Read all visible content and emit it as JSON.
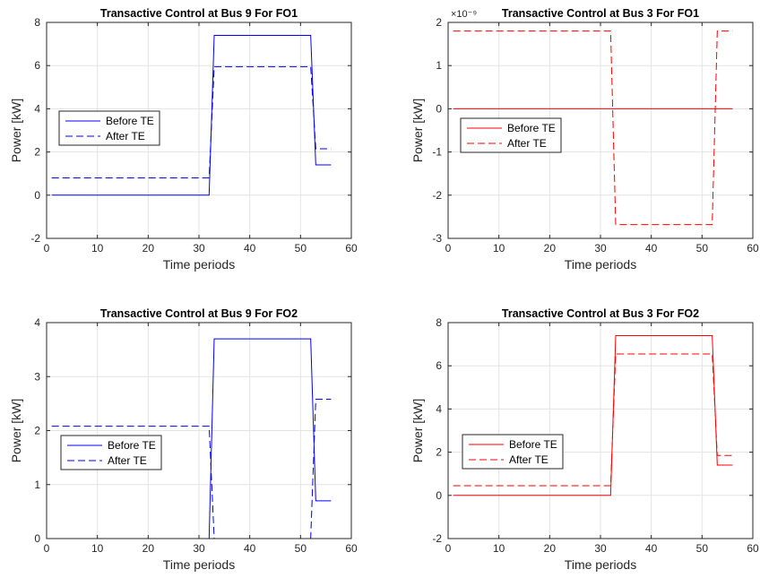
{
  "chart_data": [
    {
      "type": "line",
      "title": "Transactive Control at Bus 9 For FO1",
      "xlabel": "Time periods",
      "ylabel": "Power [kW]",
      "xlim": [
        0,
        60
      ],
      "ylim": [
        -2,
        8
      ],
      "xticks": [
        0,
        10,
        20,
        30,
        40,
        50,
        60
      ],
      "yticks": [
        -2,
        0,
        2,
        4,
        6,
        8
      ],
      "exponent_label": "",
      "grid": true,
      "legend_position": "middle-left",
      "series": [
        {
          "name": "Before TE",
          "color": "#0000ff",
          "style": "solid",
          "points": [
            [
              1,
              0
            ],
            [
              32,
              0
            ],
            [
              33,
              7.4
            ],
            [
              52,
              7.4
            ],
            [
              53,
              1.4
            ],
            [
              56,
              1.4
            ]
          ]
        },
        {
          "name": "After TE",
          "color": "#0000ff",
          "style": "dashed",
          "points": [
            [
              1,
              0.8
            ],
            [
              32,
              0.8
            ],
            [
              33,
              5.95
            ],
            [
              52,
              5.95
            ],
            [
              53,
              2.15
            ],
            [
              56,
              2.15
            ]
          ]
        }
      ]
    },
    {
      "type": "line",
      "title": "Transactive Control at Bus 3 For FO1",
      "xlabel": "Time periods",
      "ylabel": "Power [kW]",
      "xlim": [
        0,
        60
      ],
      "ylim": [
        -3,
        2
      ],
      "xticks": [
        0,
        10,
        20,
        30,
        40,
        50,
        60
      ],
      "yticks": [
        -3,
        -2,
        -1,
        0,
        1,
        2
      ],
      "exponent_label": "×10⁻⁹",
      "y_multiplier": "1e-9",
      "grid": true,
      "legend_position": "middle-left",
      "series": [
        {
          "name": "Before TE",
          "color": "#ff0000",
          "style": "solid",
          "points": [
            [
              1,
              0
            ],
            [
              56,
              0
            ]
          ]
        },
        {
          "name": "After TE",
          "color": "#ff0000",
          "style": "dashed",
          "points": [
            [
              1,
              1.8
            ],
            [
              32,
              1.8
            ],
            [
              33,
              -2.68
            ],
            [
              52,
              -2.68
            ],
            [
              53,
              1.8
            ],
            [
              56,
              1.8
            ]
          ]
        }
      ]
    },
    {
      "type": "line",
      "title": "Transactive Control at Bus 9 For FO2",
      "xlabel": "Time periods",
      "ylabel": "Power [kW]",
      "xlim": [
        0,
        60
      ],
      "ylim": [
        0,
        4
      ],
      "xticks": [
        0,
        10,
        20,
        30,
        40,
        50,
        60
      ],
      "yticks": [
        0,
        1,
        2,
        3,
        4
      ],
      "exponent_label": "",
      "grid": true,
      "legend_position": "middle-left",
      "series": [
        {
          "name": "Before TE",
          "color": "#0000ff",
          "style": "solid",
          "points": [
            [
              1,
              0
            ],
            [
              32,
              0
            ],
            [
              33,
              3.7
            ],
            [
              52,
              3.7
            ],
            [
              53,
              0.7
            ],
            [
              56,
              0.7
            ]
          ]
        },
        {
          "name": "After TE",
          "color": "#0000ff",
          "style": "dashed",
          "points": [
            [
              1,
              2.08
            ],
            [
              32,
              2.08
            ],
            [
              33,
              0
            ],
            [
              52,
              0
            ],
            [
              53,
              2.58
            ],
            [
              56,
              2.58
            ]
          ]
        }
      ]
    },
    {
      "type": "line",
      "title": "Transactive Control at Bus 3 For FO2",
      "xlabel": "Time periods",
      "ylabel": "Power [kW]",
      "xlim": [
        0,
        60
      ],
      "ylim": [
        -2,
        8
      ],
      "xticks": [
        0,
        10,
        20,
        30,
        40,
        50,
        60
      ],
      "yticks": [
        -2,
        0,
        2,
        4,
        6,
        8
      ],
      "exponent_label": "",
      "grid": true,
      "legend_position": "middle-left",
      "series": [
        {
          "name": "Before TE",
          "color": "#ff0000",
          "style": "solid",
          "points": [
            [
              1,
              0
            ],
            [
              32,
              0
            ],
            [
              33,
              7.4
            ],
            [
              52,
              7.4
            ],
            [
              53,
              1.4
            ],
            [
              56,
              1.4
            ]
          ]
        },
        {
          "name": "After TE",
          "color": "#ff0000",
          "style": "dashed",
          "points": [
            [
              1,
              0.45
            ],
            [
              32,
              0.45
            ],
            [
              33,
              6.55
            ],
            [
              52,
              6.55
            ],
            [
              53,
              1.85
            ],
            [
              56,
              1.85
            ]
          ]
        }
      ]
    }
  ]
}
